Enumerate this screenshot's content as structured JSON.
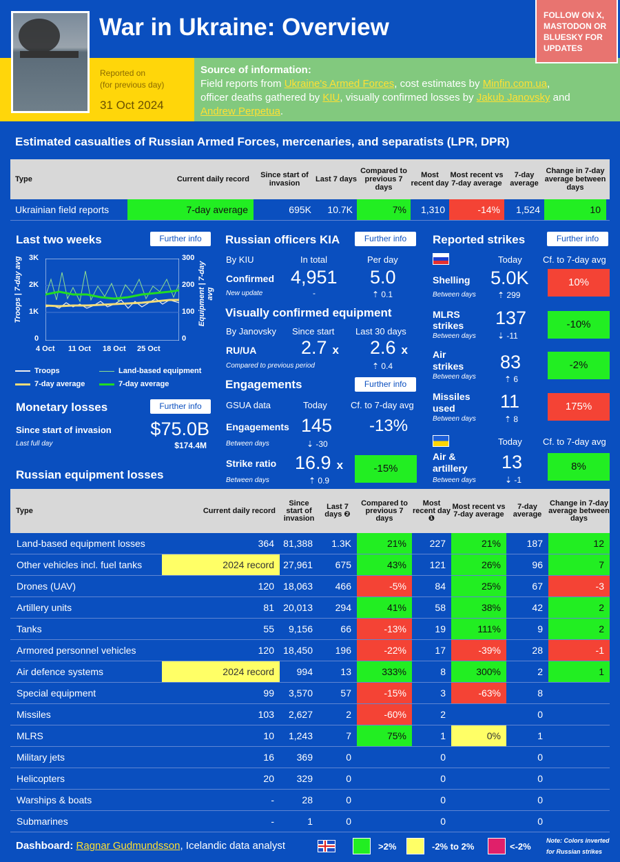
{
  "header": {
    "title": "War in Ukraine: Overview",
    "reported_label": "Reported on",
    "reported_sub": "(for previous day)",
    "date": "31 Oct 2024",
    "follow": "FOLLOW ON X, MASTODON OR BLUESKY FOR UPDATES",
    "source_title": "Source of information:",
    "src": {
      "t1": "Field reports from ",
      "l1": "Ukraine's Armed Forces",
      "t2": ", cost estimates by ",
      "l2": "Minfin.com.ua",
      "t3": ",",
      "t4": "officer deaths gathered by ",
      "l3": "KIU",
      "t5": ", visually confirmed losses by ",
      "l4": "Jakub Janovsky",
      "t6": " and",
      "l5": "Andrew Perpetua",
      "t7": "."
    }
  },
  "casualties": {
    "title": "Estimated casualties of Russian Armed Forces, mercenaries, and separatists (LPR, DPR)",
    "headers": [
      "Type",
      "Current daily record",
      "Since start of invasion",
      "Last 7 days",
      "Compared to previous 7 days",
      "Most recent day",
      "Most recent vs 7-day average",
      "7-day average",
      "Change in 7-day average between days"
    ],
    "row": [
      "Ukrainian field reports",
      "7-day average",
      "695K",
      "10.7K",
      "7%",
      "1,310",
      "-14%",
      "1,524",
      "10"
    ]
  },
  "two_weeks": {
    "title": "Last two weeks",
    "further": "Further info",
    "y_left": [
      "3K",
      "2K",
      "1K",
      "0"
    ],
    "y_right": [
      "300",
      "200",
      "100",
      "0"
    ],
    "x": [
      "4 Oct",
      "11 Oct",
      "18 Oct",
      "25 Oct"
    ],
    "axis_left": "Troops | 7-day avg",
    "axis_right": "Equipment | 7-day avg",
    "leg": [
      "Troops",
      "Land-based equipment",
      "7-day average",
      "7-day average"
    ]
  },
  "chart_data": {
    "type": "line",
    "x": [
      "4 Oct",
      "11 Oct",
      "18 Oct",
      "25 Oct"
    ],
    "series": [
      {
        "name": "Troops"
      },
      {
        "name": "Land-based equipment"
      },
      {
        "name": "7-day average"
      },
      {
        "name": "7-day average"
      }
    ],
    "ylim_left": [
      0,
      3000
    ],
    "ylim_right": [
      0,
      300
    ]
  },
  "monetary": {
    "title": "Monetary losses",
    "further": "Further info",
    "label": "Since start of invasion",
    "sub": "Last full day",
    "value": "$75.0B",
    "daily": "$174.4M"
  },
  "officers": {
    "title": "Russian officers KIA",
    "further": "Further info",
    "by": "By KIU",
    "c1": "In total",
    "c2": "Per day",
    "rl": "Confirmed",
    "rs": "New update",
    "total": "4,951",
    "dash": "-",
    "per": "5.0",
    "per_d": "⇡ 0.1"
  },
  "visual": {
    "title": "Visually confirmed equipment",
    "by": "By Janovsky",
    "c1": "Since start",
    "c2": "Last 30 days",
    "rl": "RU/UA",
    "rs": "Compared to previous period",
    "v1": "2.7",
    "x": "x",
    "v2": "2.6",
    "d": "⇡ 0.4"
  },
  "engage": {
    "title": "Engagements",
    "further": "Further info",
    "by": "GSUA data",
    "c1": "Today",
    "c2": "Cf. to 7-day avg",
    "r1": "Engagements",
    "r1s": "Between days",
    "v1": "145",
    "d1": "⇣ -30",
    "p1": "-13%",
    "r2": "Strike ratio",
    "r2s": "Between days",
    "v2": "16.9",
    "x": "x",
    "d2": "⇡ 0.9",
    "p2": "-15%"
  },
  "strikes": {
    "title": "Reported strikes",
    "further": "Further info",
    "today": "Today",
    "cf": "Cf. to 7-day avg",
    "between": "Between days",
    "rows": [
      {
        "l": "Shelling",
        "v": "5.0K",
        "d": "⇡ 299",
        "p": "10%"
      },
      {
        "l": "MLRS strikes",
        "v": "137",
        "d": "⇣ -11",
        "p": "-10%"
      },
      {
        "l": "Air strikes",
        "v": "83",
        "d": "⇡ 6",
        "p": "-2%"
      },
      {
        "l": "Missiles used",
        "v": "11",
        "d": "⇡ 8",
        "p": "175%"
      }
    ],
    "ua": {
      "l": "Air & artillery",
      "v": "13",
      "d": "⇣ -1",
      "p": "8%"
    }
  },
  "equipment": {
    "title": "Russian equipment losses",
    "headers": [
      "Type",
      "Current daily record",
      "Since start of invasion",
      "Last 7 days ❷",
      "Compared to previous 7 days",
      "Most recent day ❶",
      "Most recent vs 7-day average",
      "7-day average",
      "Change in 7-day average between days"
    ],
    "rows": [
      [
        "Land-based equipment losses",
        "364",
        "81,388",
        "1.3K",
        "21%",
        "227",
        "21%",
        "187",
        "12"
      ],
      [
        "Other vehicles incl. fuel tanks",
        "2024 record",
        "27,961",
        "675",
        "43%",
        "121",
        "26%",
        "96",
        "7"
      ],
      [
        "Drones (UAV)",
        "120",
        "18,063",
        "466",
        "-5%",
        "84",
        "25%",
        "67",
        "-3"
      ],
      [
        "Artillery units",
        "81",
        "20,013",
        "294",
        "41%",
        "58",
        "38%",
        "42",
        "2"
      ],
      [
        "Tanks",
        "55",
        "9,156",
        "66",
        "-13%",
        "19",
        "111%",
        "9",
        "2"
      ],
      [
        "Armored personnel vehicles",
        "120",
        "18,450",
        "196",
        "-22%",
        "17",
        "-39%",
        "28",
        "-1"
      ],
      [
        "Air defence systems",
        "2024 record",
        "994",
        "13",
        "333%",
        "8",
        "300%",
        "2",
        "1"
      ],
      [
        "Special equipment",
        "99",
        "3,570",
        "57",
        "-15%",
        "3",
        "-63%",
        "8",
        ""
      ],
      [
        "Missiles",
        "103",
        "2,627",
        "2",
        "-60%",
        "2",
        "",
        "0",
        ""
      ],
      [
        "MLRS",
        "10",
        "1,243",
        "7",
        "75%",
        "1",
        "0%",
        "1",
        ""
      ],
      [
        "Military jets",
        "16",
        "369",
        "0",
        "",
        "0",
        "",
        "0",
        ""
      ],
      [
        "Helicopters",
        "20",
        "329",
        "0",
        "",
        "0",
        "",
        "0",
        ""
      ],
      [
        "Warships & boats",
        "-",
        "28",
        "0",
        "",
        "0",
        "",
        "0",
        ""
      ],
      [
        "Submarines",
        "-",
        "1",
        "0",
        "",
        "0",
        "",
        "0",
        ""
      ]
    ]
  },
  "footer": {
    "label": "Dashboard:",
    "author": "Ragnar Gudmundsson",
    "rest": ", Icelandic data analyst",
    "k1": ">2%",
    "k2": "-2% to 2%",
    "k3": "<-2%",
    "note": "Note: Colors inverted for Russian strikes"
  },
  "colors": {
    "bg": "#0a4fbf",
    "green": "#22ee22",
    "red": "#f44335",
    "yellow": "#ffff66"
  }
}
